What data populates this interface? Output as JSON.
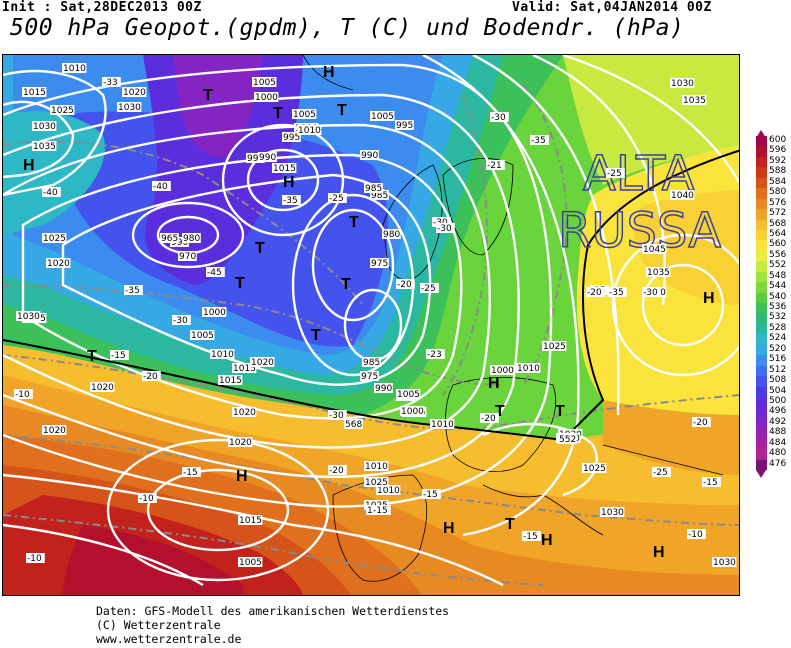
{
  "header": {
    "init_text": "Init : Sat,28DEC2013 00Z",
    "valid_text": "Valid: Sat,04JAN2014 00Z",
    "title": "500 hPa Geopot.(gpdm), T (C) und Bodendr. (hPa)"
  },
  "annotation": {
    "line1": "ALTA",
    "line2": "RUSSA",
    "color": "#3a3fa8"
  },
  "legend": {
    "labels": [
      "600",
      "596",
      "592",
      "588",
      "584",
      "580",
      "576",
      "572",
      "568",
      "564",
      "560",
      "556",
      "552",
      "548",
      "544",
      "540",
      "536",
      "532",
      "528",
      "524",
      "520",
      "516",
      "512",
      "508",
      "504",
      "500",
      "496",
      "492",
      "488",
      "484",
      "480",
      "476"
    ],
    "colors": [
      "#a0064a",
      "#b3102d",
      "#c2211c",
      "#cc3a18",
      "#d6541a",
      "#e06f1e",
      "#e88a22",
      "#f0a428",
      "#f6bd2e",
      "#f8d234",
      "#fae43c",
      "#e8ee44",
      "#c8ea40",
      "#a2e23c",
      "#7ed83a",
      "#5ccc3c",
      "#3cc05a",
      "#2cb87c",
      "#28b8a0",
      "#2cb8c4",
      "#36a8e4",
      "#3c8cf0",
      "#3f6ef2",
      "#4452ee",
      "#4a3ae8",
      "#5a2edc",
      "#6e28d0",
      "#8424c2",
      "#9622b0",
      "#a4229e",
      "#b0248c",
      "#7a1472"
    ]
  },
  "map_labels": {
    "pressure_values": [
      "1010",
      "1015",
      "1025",
      "1030",
      "1035",
      "1020",
      "1030",
      "1025",
      "1020",
      "1005",
      "1000",
      "1005",
      "1000",
      "995",
      "1015",
      "1010",
      "1005",
      "995",
      "990",
      "985",
      "980",
      "975",
      "985",
      "990",
      "995",
      "990",
      "985",
      "975",
      "970",
      "965",
      "980",
      "990",
      "995",
      "1000",
      "1005",
      "1010",
      "1015",
      "1020",
      "1025",
      "1030",
      "1035",
      "1040",
      "1045",
      "1035",
      "1030",
      "1025",
      "1020",
      "1015",
      "1010",
      "1020",
      "1015",
      "1010",
      "1005",
      "1025",
      "1030",
      "1030",
      "1020",
      "1025",
      "1030",
      "1020",
      "1015",
      "1010",
      "1000",
      "1005",
      "1010",
      "1000",
      "1010",
      "1015",
      "1020",
      "1025"
    ],
    "temperature_values": [
      "-33",
      "-35",
      "-30",
      "-25",
      "-35",
      "-40",
      "-40",
      "-45",
      "-35",
      "-30",
      "-21",
      "-30",
      "-35",
      "-25",
      "-30",
      "-35",
      "-25",
      "-20",
      "-15",
      "-30",
      "-23",
      "-30",
      "-20",
      "-20",
      "-10",
      "-20",
      "-15",
      "-15",
      "-10",
      "-10",
      "-15",
      "-20",
      "-25",
      "-20",
      "-15",
      "-10",
      "-15"
    ],
    "high_marker": "H",
    "low_marker": "T",
    "contour_552_label": "552",
    "contour_568_label": "568"
  },
  "footer": {
    "line1": "Daten: GFS-Modell des amerikanischen Wetterdienstes",
    "line2": "(C) Wetterzentrale",
    "line3": "www.wetterzentrale.de"
  }
}
